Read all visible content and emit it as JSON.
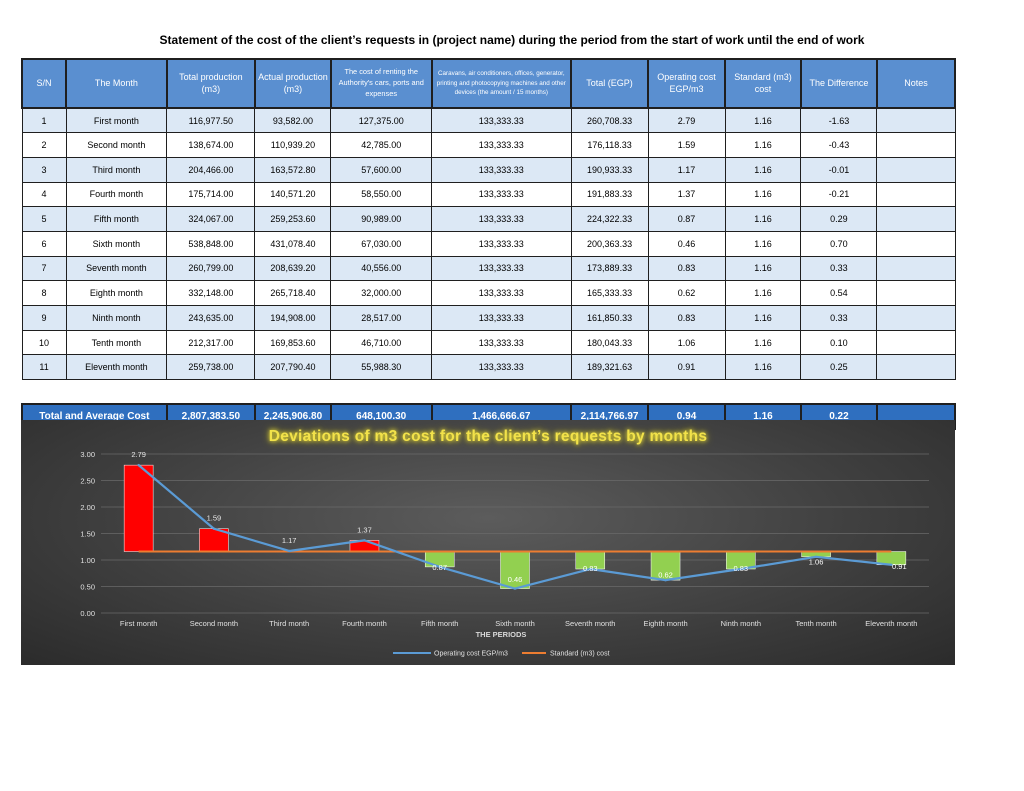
{
  "page_title": "Statement of the cost of the client’s requests  in (project name) during the period from the start of work until the end of work",
  "table": {
    "headers": {
      "sn": "S/N",
      "month": "The Month",
      "total_production": "Total production (m3)",
      "actual_production": "Actual production (m3)",
      "renting_cost": "The cost of renting the Authority's cars, ports and expenses",
      "caravans": "Caravans, air conditioners, offices, generator, printing and photocopying machines and other devices (the amount / 15 months)",
      "total_egp": "Total (EGP)",
      "operating_cost": "Operating cost EGP/m3",
      "standard_cost": "Standard (m3) cost",
      "difference": "The Difference",
      "notes": "Notes"
    },
    "rows": [
      {
        "sn": "1",
        "month": "First month",
        "total_production": "116,977.50",
        "actual_production": "93,582.00",
        "renting_cost": "127,375.00",
        "caravans": "133,333.33",
        "total_egp": "260,708.33",
        "operating_cost": "2.79",
        "standard_cost": "1.16",
        "difference": "-1.63",
        "notes": ""
      },
      {
        "sn": "2",
        "month": "Second month",
        "total_production": "138,674.00",
        "actual_production": "110,939.20",
        "renting_cost": "42,785.00",
        "caravans": "133,333.33",
        "total_egp": "176,118.33",
        "operating_cost": "1.59",
        "standard_cost": "1.16",
        "difference": "-0.43",
        "notes": ""
      },
      {
        "sn": "3",
        "month": "Third month",
        "total_production": "204,466.00",
        "actual_production": "163,572.80",
        "renting_cost": "57,600.00",
        "caravans": "133,333.33",
        "total_egp": "190,933.33",
        "operating_cost": "1.17",
        "standard_cost": "1.16",
        "difference": "-0.01",
        "notes": ""
      },
      {
        "sn": "4",
        "month": "Fourth month",
        "total_production": "175,714.00",
        "actual_production": "140,571.20",
        "renting_cost": "58,550.00",
        "caravans": "133,333.33",
        "total_egp": "191,883.33",
        "operating_cost": "1.37",
        "standard_cost": "1.16",
        "difference": "-0.21",
        "notes": ""
      },
      {
        "sn": "5",
        "month": "Fifth month",
        "total_production": "324,067.00",
        "actual_production": "259,253.60",
        "renting_cost": "90,989.00",
        "caravans": "133,333.33",
        "total_egp": "224,322.33",
        "operating_cost": "0.87",
        "standard_cost": "1.16",
        "difference": "0.29",
        "notes": ""
      },
      {
        "sn": "6",
        "month": "Sixth month",
        "total_production": "538,848.00",
        "actual_production": "431,078.40",
        "renting_cost": "67,030.00",
        "caravans": "133,333.33",
        "total_egp": "200,363.33",
        "operating_cost": "0.46",
        "standard_cost": "1.16",
        "difference": "0.70",
        "notes": ""
      },
      {
        "sn": "7",
        "month": "Seventh month",
        "total_production": "260,799.00",
        "actual_production": "208,639.20",
        "renting_cost": "40,556.00",
        "caravans": "133,333.33",
        "total_egp": "173,889.33",
        "operating_cost": "0.83",
        "standard_cost": "1.16",
        "difference": "0.33",
        "notes": ""
      },
      {
        "sn": "8",
        "month": "Eighth month",
        "total_production": "332,148.00",
        "actual_production": "265,718.40",
        "renting_cost": "32,000.00",
        "caravans": "133,333.33",
        "total_egp": "165,333.33",
        "operating_cost": "0.62",
        "standard_cost": "1.16",
        "difference": "0.54",
        "notes": ""
      },
      {
        "sn": "9",
        "month": "Ninth month",
        "total_production": "243,635.00",
        "actual_production": "194,908.00",
        "renting_cost": "28,517.00",
        "caravans": "133,333.33",
        "total_egp": "161,850.33",
        "operating_cost": "0.83",
        "standard_cost": "1.16",
        "difference": "0.33",
        "notes": ""
      },
      {
        "sn": "10",
        "month": "Tenth month",
        "total_production": "212,317.00",
        "actual_production": "169,853.60",
        "renting_cost": "46,710.00",
        "caravans": "133,333.33",
        "total_egp": "180,043.33",
        "operating_cost": "1.06",
        "standard_cost": "1.16",
        "difference": "0.10",
        "notes": ""
      },
      {
        "sn": "11",
        "month": "Eleventh month",
        "total_production": "259,738.00",
        "actual_production": "207,790.40",
        "renting_cost": "55,988.30",
        "caravans": "133,333.33",
        "total_egp": "189,321.63",
        "operating_cost": "0.91",
        "standard_cost": "1.16",
        "difference": "0.25",
        "notes": ""
      }
    ],
    "total": {
      "label": "Total and Average Cost",
      "total_production": "2,807,383.50",
      "actual_production": "2,245,906.80",
      "renting_cost": "648,100.30",
      "caravans": "1,466,666.67",
      "total_egp": "2,114,766.97",
      "operating_cost": "0.94",
      "standard_cost": "1.16",
      "difference": "0.22",
      "notes": ""
    }
  },
  "chart_data": {
    "type": "line",
    "title": "Deviations of m3 cost for the client’s requests by months",
    "xlabel": "THE PERIODS",
    "ylabel": "",
    "categories": [
      "First month",
      "Second month",
      "Third month",
      "Fourth month",
      "Fifth month",
      "Sixth month",
      "Seventh month",
      "Eighth month",
      "Ninth month",
      "Tenth month",
      "Eleventh month"
    ],
    "series": [
      {
        "name": "Operating cost EGP/m3",
        "values": [
          2.79,
          1.59,
          1.17,
          1.37,
          0.87,
          0.46,
          0.83,
          0.62,
          0.83,
          1.06,
          0.91
        ],
        "color": "#5b9bd5"
      },
      {
        "name": "Standard (m3) cost",
        "values": [
          1.16,
          1.16,
          1.16,
          1.16,
          1.16,
          1.16,
          1.16,
          1.16,
          1.16,
          1.16,
          1.16
        ],
        "color": "#ed7d31"
      }
    ],
    "data_labels": [
      "2.79",
      "1.59",
      "1.17",
      "1.37",
      "0.87",
      "0.46",
      "0.83",
      "0.62",
      "0.83",
      "1.06",
      "0.91"
    ],
    "deviation_bars": {
      "above_color": "#ff0000",
      "below_color": "#92d050"
    },
    "yticks": [
      "0.00",
      "0.50",
      "1.00",
      "1.50",
      "2.00",
      "2.50",
      "3.00"
    ],
    "ylim": [
      0,
      3
    ],
    "grid": true,
    "legend_position": "bottom",
    "background": "#404040",
    "title_color": "#f2e24a"
  }
}
